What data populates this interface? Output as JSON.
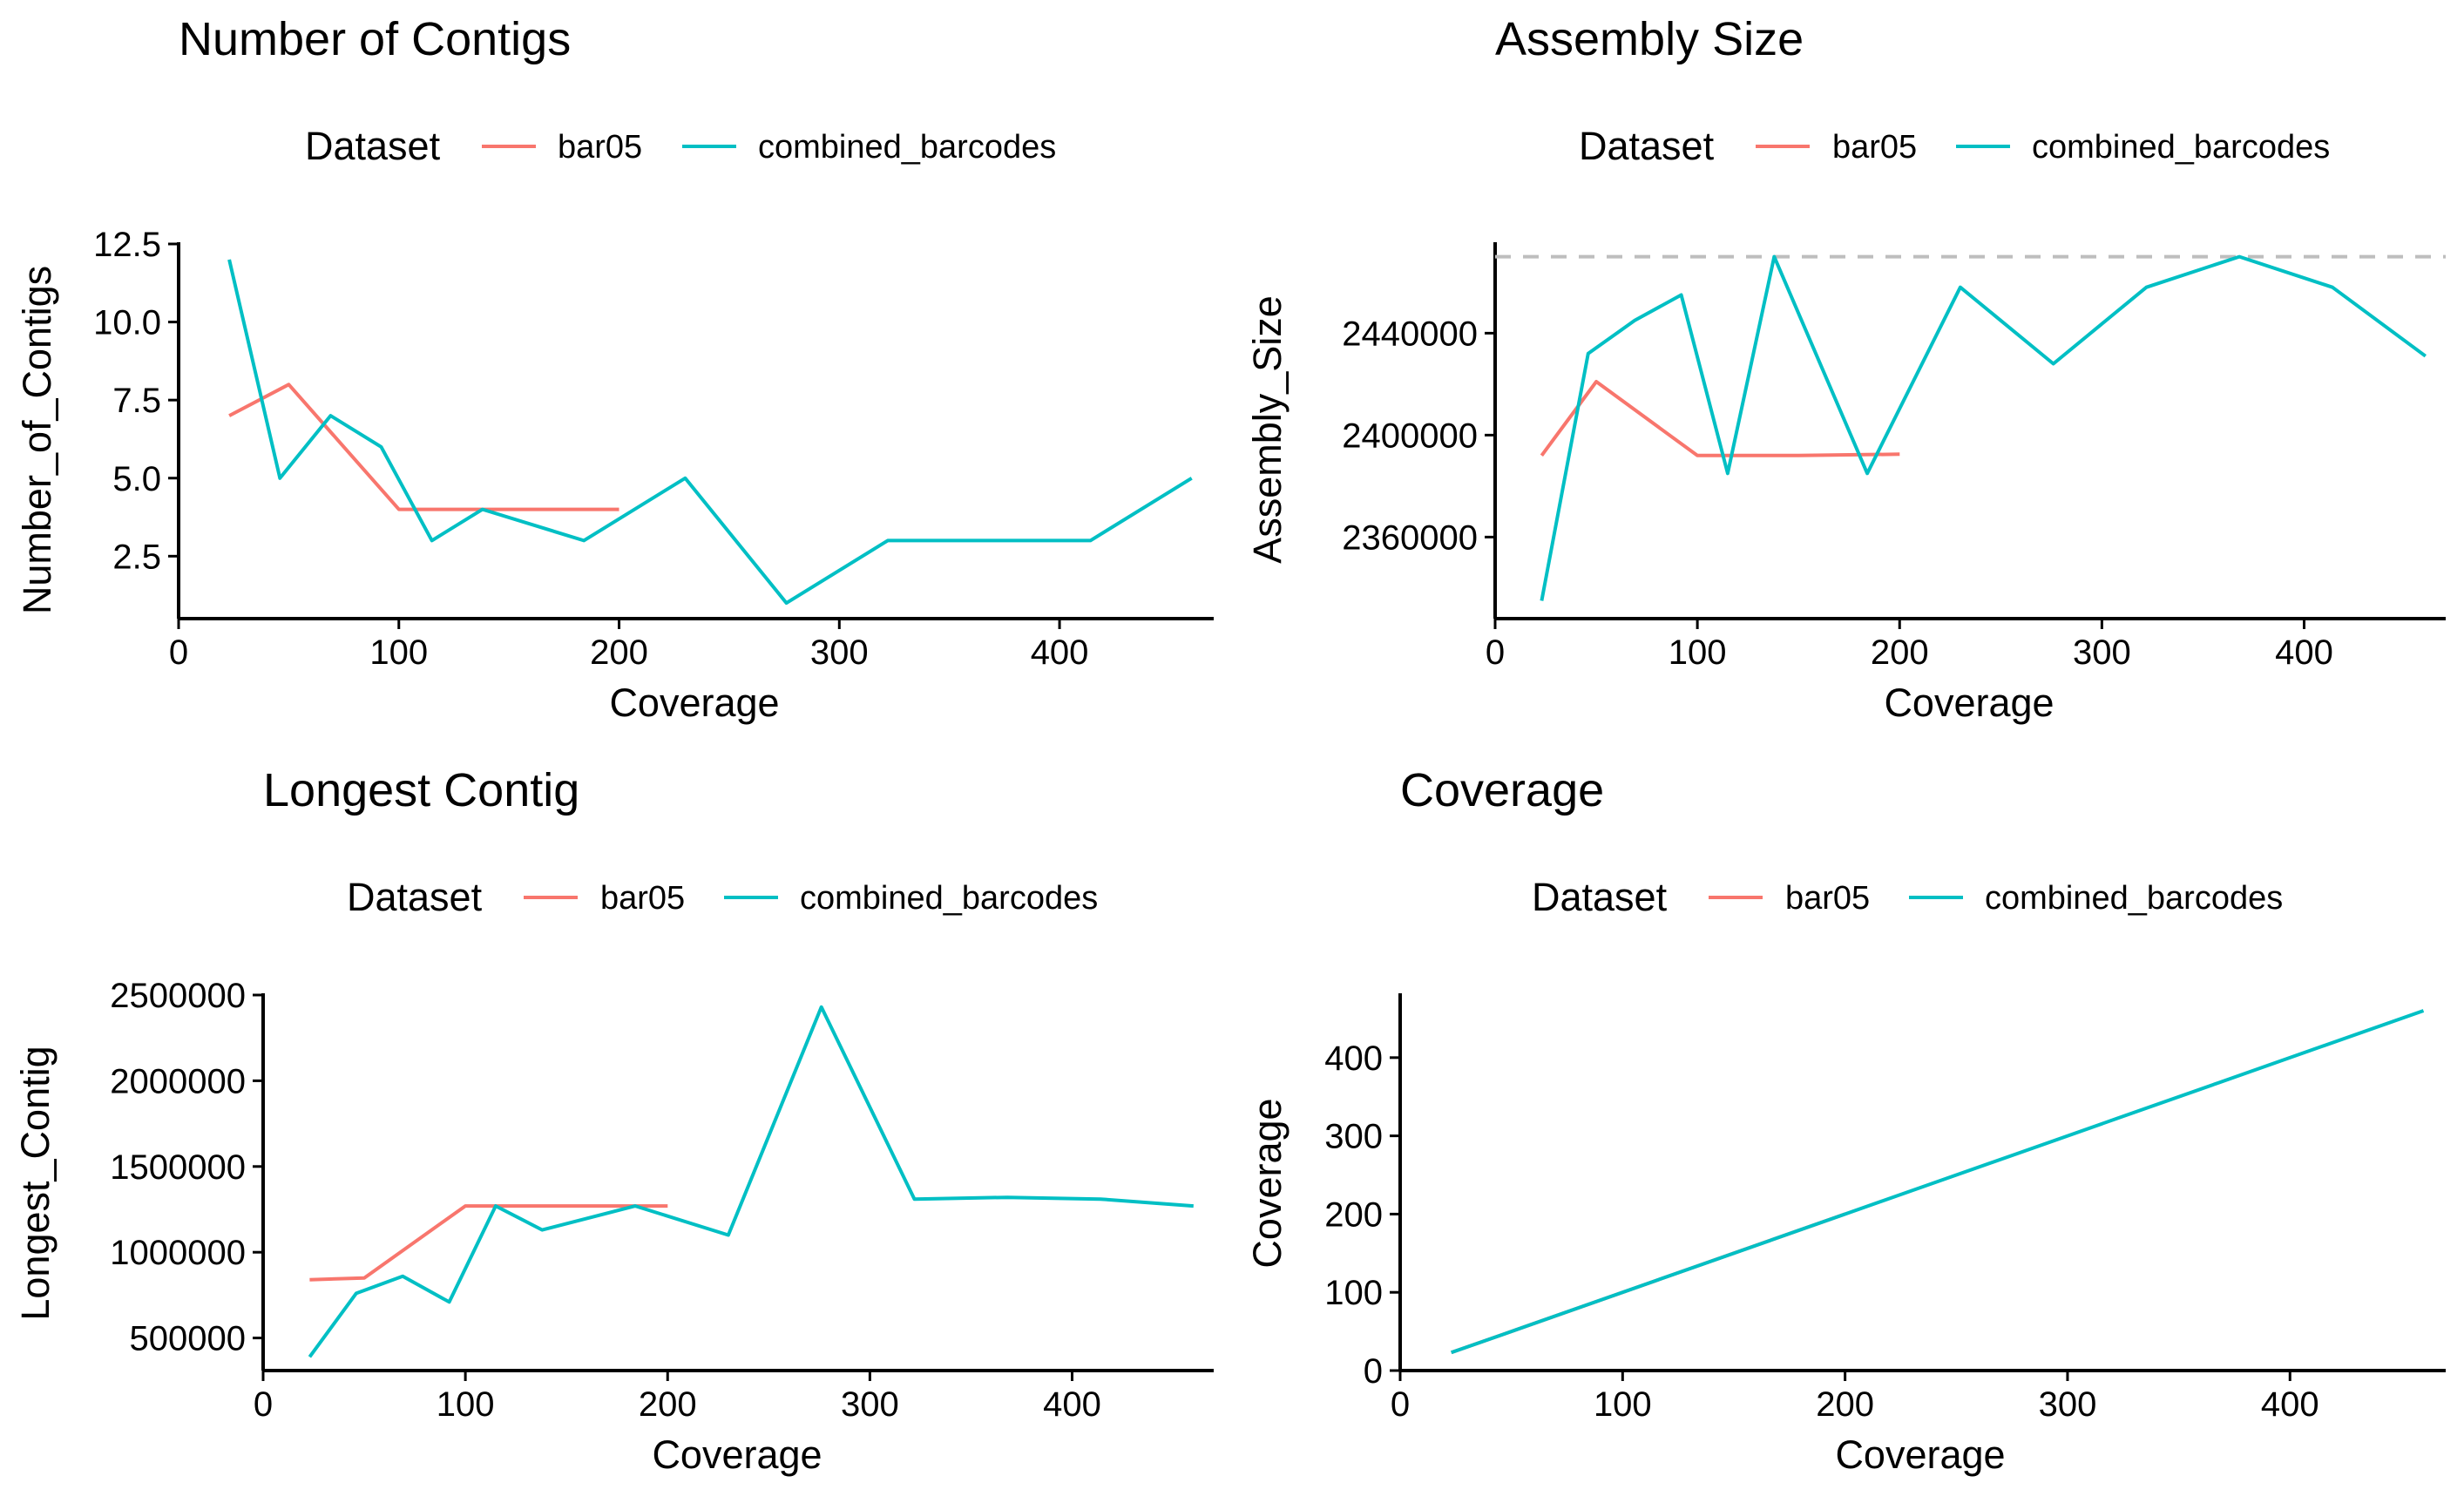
{
  "colors": {
    "bar05": "#F8766D",
    "combined_barcodes": "#00BFC4",
    "reference": "#BEBEBE",
    "axis": "#000000"
  },
  "chart_data": [
    {
      "id": "contigs",
      "type": "line",
      "title": "Number of Contigs",
      "xlabel": "Coverage",
      "ylabel": "Number_of_Contigs",
      "legend": {
        "title": "Dataset",
        "entries": [
          "bar05",
          "combined_barcodes"
        ],
        "position": "top"
      },
      "xlim": [
        0,
        470
      ],
      "ylim": [
        0.5,
        12.5
      ],
      "xticks": [
        0,
        100,
        200,
        300,
        400
      ],
      "xtick_labels": [
        "0",
        "100",
        "200",
        "300",
        "400"
      ],
      "yticks": [
        2.5,
        5.0,
        7.5,
        10.0,
        12.5
      ],
      "ytick_labels": [
        "2.5",
        "5.0",
        "7.5",
        "10.0",
        "12.5"
      ],
      "grid": false,
      "series": [
        {
          "name": "bar05",
          "color": "#F8766D",
          "x": [
            23,
            50,
            100,
            150,
            200
          ],
          "y": [
            7,
            8,
            4,
            4,
            4
          ]
        },
        {
          "name": "combined_barcodes",
          "color": "#00BFC4",
          "x": [
            23,
            46,
            69,
            92,
            115,
            138,
            184,
            230,
            276,
            322,
            368,
            414,
            460
          ],
          "y": [
            12,
            5,
            7,
            6,
            3,
            4,
            3,
            5,
            1,
            3,
            3,
            3,
            5
          ]
        }
      ]
    },
    {
      "id": "assembly",
      "type": "line",
      "title": "Assembly Size",
      "xlabel": "Coverage",
      "ylabel": "Assembly_Size",
      "legend": {
        "title": "Dataset",
        "entries": [
          "bar05",
          "combined_barcodes"
        ],
        "position": "top"
      },
      "xlim": [
        0,
        470
      ],
      "ylim": [
        2328000,
        2475000
      ],
      "xticks": [
        0,
        100,
        200,
        300,
        400
      ],
      "xtick_labels": [
        "0",
        "100",
        "200",
        "300",
        "400"
      ],
      "yticks": [
        2360000,
        2400000,
        2440000
      ],
      "ytick_labels": [
        "2360000",
        "2400000",
        "2440000"
      ],
      "grid": false,
      "reference_line": {
        "y": 2470000,
        "style": "dashed"
      },
      "series": [
        {
          "name": "bar05",
          "color": "#F8766D",
          "x": [
            23,
            50,
            100,
            150,
            200
          ],
          "y": [
            2392000,
            2421000,
            2392000,
            2392000,
            2392500
          ]
        },
        {
          "name": "combined_barcodes",
          "color": "#00BFC4",
          "x": [
            23,
            46,
            69,
            92,
            115,
            138,
            184,
            230,
            276,
            322,
            368,
            414,
            460
          ],
          "y": [
            2335000,
            2432000,
            2445000,
            2455000,
            2385000,
            2470000,
            2385000,
            2458000,
            2428000,
            2458000,
            2470000,
            2458000,
            2431000
          ]
        }
      ]
    },
    {
      "id": "longest",
      "type": "line",
      "title": "Longest Contig",
      "xlabel": "Coverage",
      "ylabel": "Longest_Contig",
      "legend": {
        "title": "Dataset",
        "entries": [
          "bar05",
          "combined_barcodes"
        ],
        "position": "top"
      },
      "xlim": [
        0,
        470
      ],
      "ylim": [
        310000,
        2500000
      ],
      "xticks": [
        0,
        100,
        200,
        300,
        400
      ],
      "xtick_labels": [
        "0",
        "100",
        "200",
        "300",
        "400"
      ],
      "yticks": [
        500000,
        1000000,
        1500000,
        2000000,
        2500000
      ],
      "ytick_labels": [
        "500000",
        "1000000",
        "1500000",
        "2000000",
        "2500000"
      ],
      "grid": false,
      "series": [
        {
          "name": "bar05",
          "color": "#F8766D",
          "x": [
            23,
            50,
            100,
            150,
            200
          ],
          "y": [
            840000,
            850000,
            1270000,
            1270000,
            1270000
          ]
        },
        {
          "name": "combined_barcodes",
          "color": "#00BFC4",
          "x": [
            23,
            46,
            69,
            92,
            115,
            138,
            184,
            230,
            276,
            322,
            368,
            414,
            460
          ],
          "y": [
            390000,
            760000,
            860000,
            710000,
            1270000,
            1130000,
            1270000,
            1100000,
            2430000,
            1310000,
            1320000,
            1310000,
            1270000
          ]
        }
      ]
    },
    {
      "id": "coverage",
      "type": "line",
      "title": "Coverage",
      "xlabel": "Coverage",
      "ylabel": "Coverage",
      "legend": {
        "title": "Dataset",
        "entries": [
          "bar05",
          "combined_barcodes"
        ],
        "position": "top"
      },
      "xlim": [
        0,
        470
      ],
      "ylim": [
        0,
        480
      ],
      "xticks": [
        0,
        100,
        200,
        300,
        400
      ],
      "xtick_labels": [
        "0",
        "100",
        "200",
        "300",
        "400"
      ],
      "yticks": [
        0,
        100,
        200,
        300,
        400
      ],
      "ytick_labels": [
        "0",
        "100",
        "200",
        "300",
        "400"
      ],
      "grid": false,
      "series": [
        {
          "name": "bar05",
          "color": "#F8766D",
          "x": [
            23,
            50,
            100,
            150,
            200
          ],
          "y": [
            23,
            50,
            100,
            150,
            200
          ]
        },
        {
          "name": "combined_barcodes",
          "color": "#00BFC4",
          "x": [
            23,
            46,
            69,
            92,
            115,
            138,
            184,
            230,
            276,
            322,
            368,
            414,
            460
          ],
          "y": [
            23,
            46,
            69,
            92,
            115,
            138,
            184,
            230,
            276,
            322,
            368,
            414,
            460
          ]
        }
      ]
    }
  ]
}
